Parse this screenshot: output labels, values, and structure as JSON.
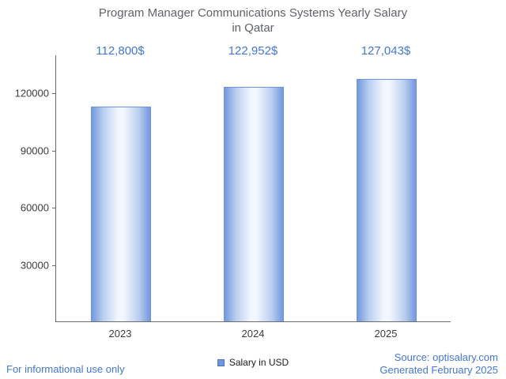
{
  "chart": {
    "title_line1": "Program Manager Communications Systems Yearly Salary",
    "title_line2": "in Qatar",
    "legend_label": "Salary in USD",
    "footer_left": "For informational use only",
    "source_line1": "Source: optisalary.com",
    "source_line2": "Generated February 2025"
  },
  "chart_data": {
    "type": "bar",
    "title": "Program Manager Communications Systems Yearly Salary in Qatar",
    "categories": [
      "2023",
      "2024",
      "2025"
    ],
    "values": [
      112800,
      122952,
      127043
    ],
    "value_labels": [
      "112,800$",
      "122,952$",
      "127,043$"
    ],
    "series": [
      {
        "name": "Salary in USD",
        "values": [
          112800,
          122952,
          127043
        ]
      }
    ],
    "xlabel": "",
    "ylabel": "",
    "ylim": [
      0,
      140000
    ],
    "yticks": [
      30000,
      60000,
      90000,
      120000
    ],
    "grid": false,
    "legend_position": "bottom",
    "colors": {
      "bar_edge": "#6d94dc",
      "bar_center": "#f2f6fe",
      "value_label": "#4377d2",
      "footer_text": "#4377d2",
      "title_text": "#5f6368"
    }
  }
}
